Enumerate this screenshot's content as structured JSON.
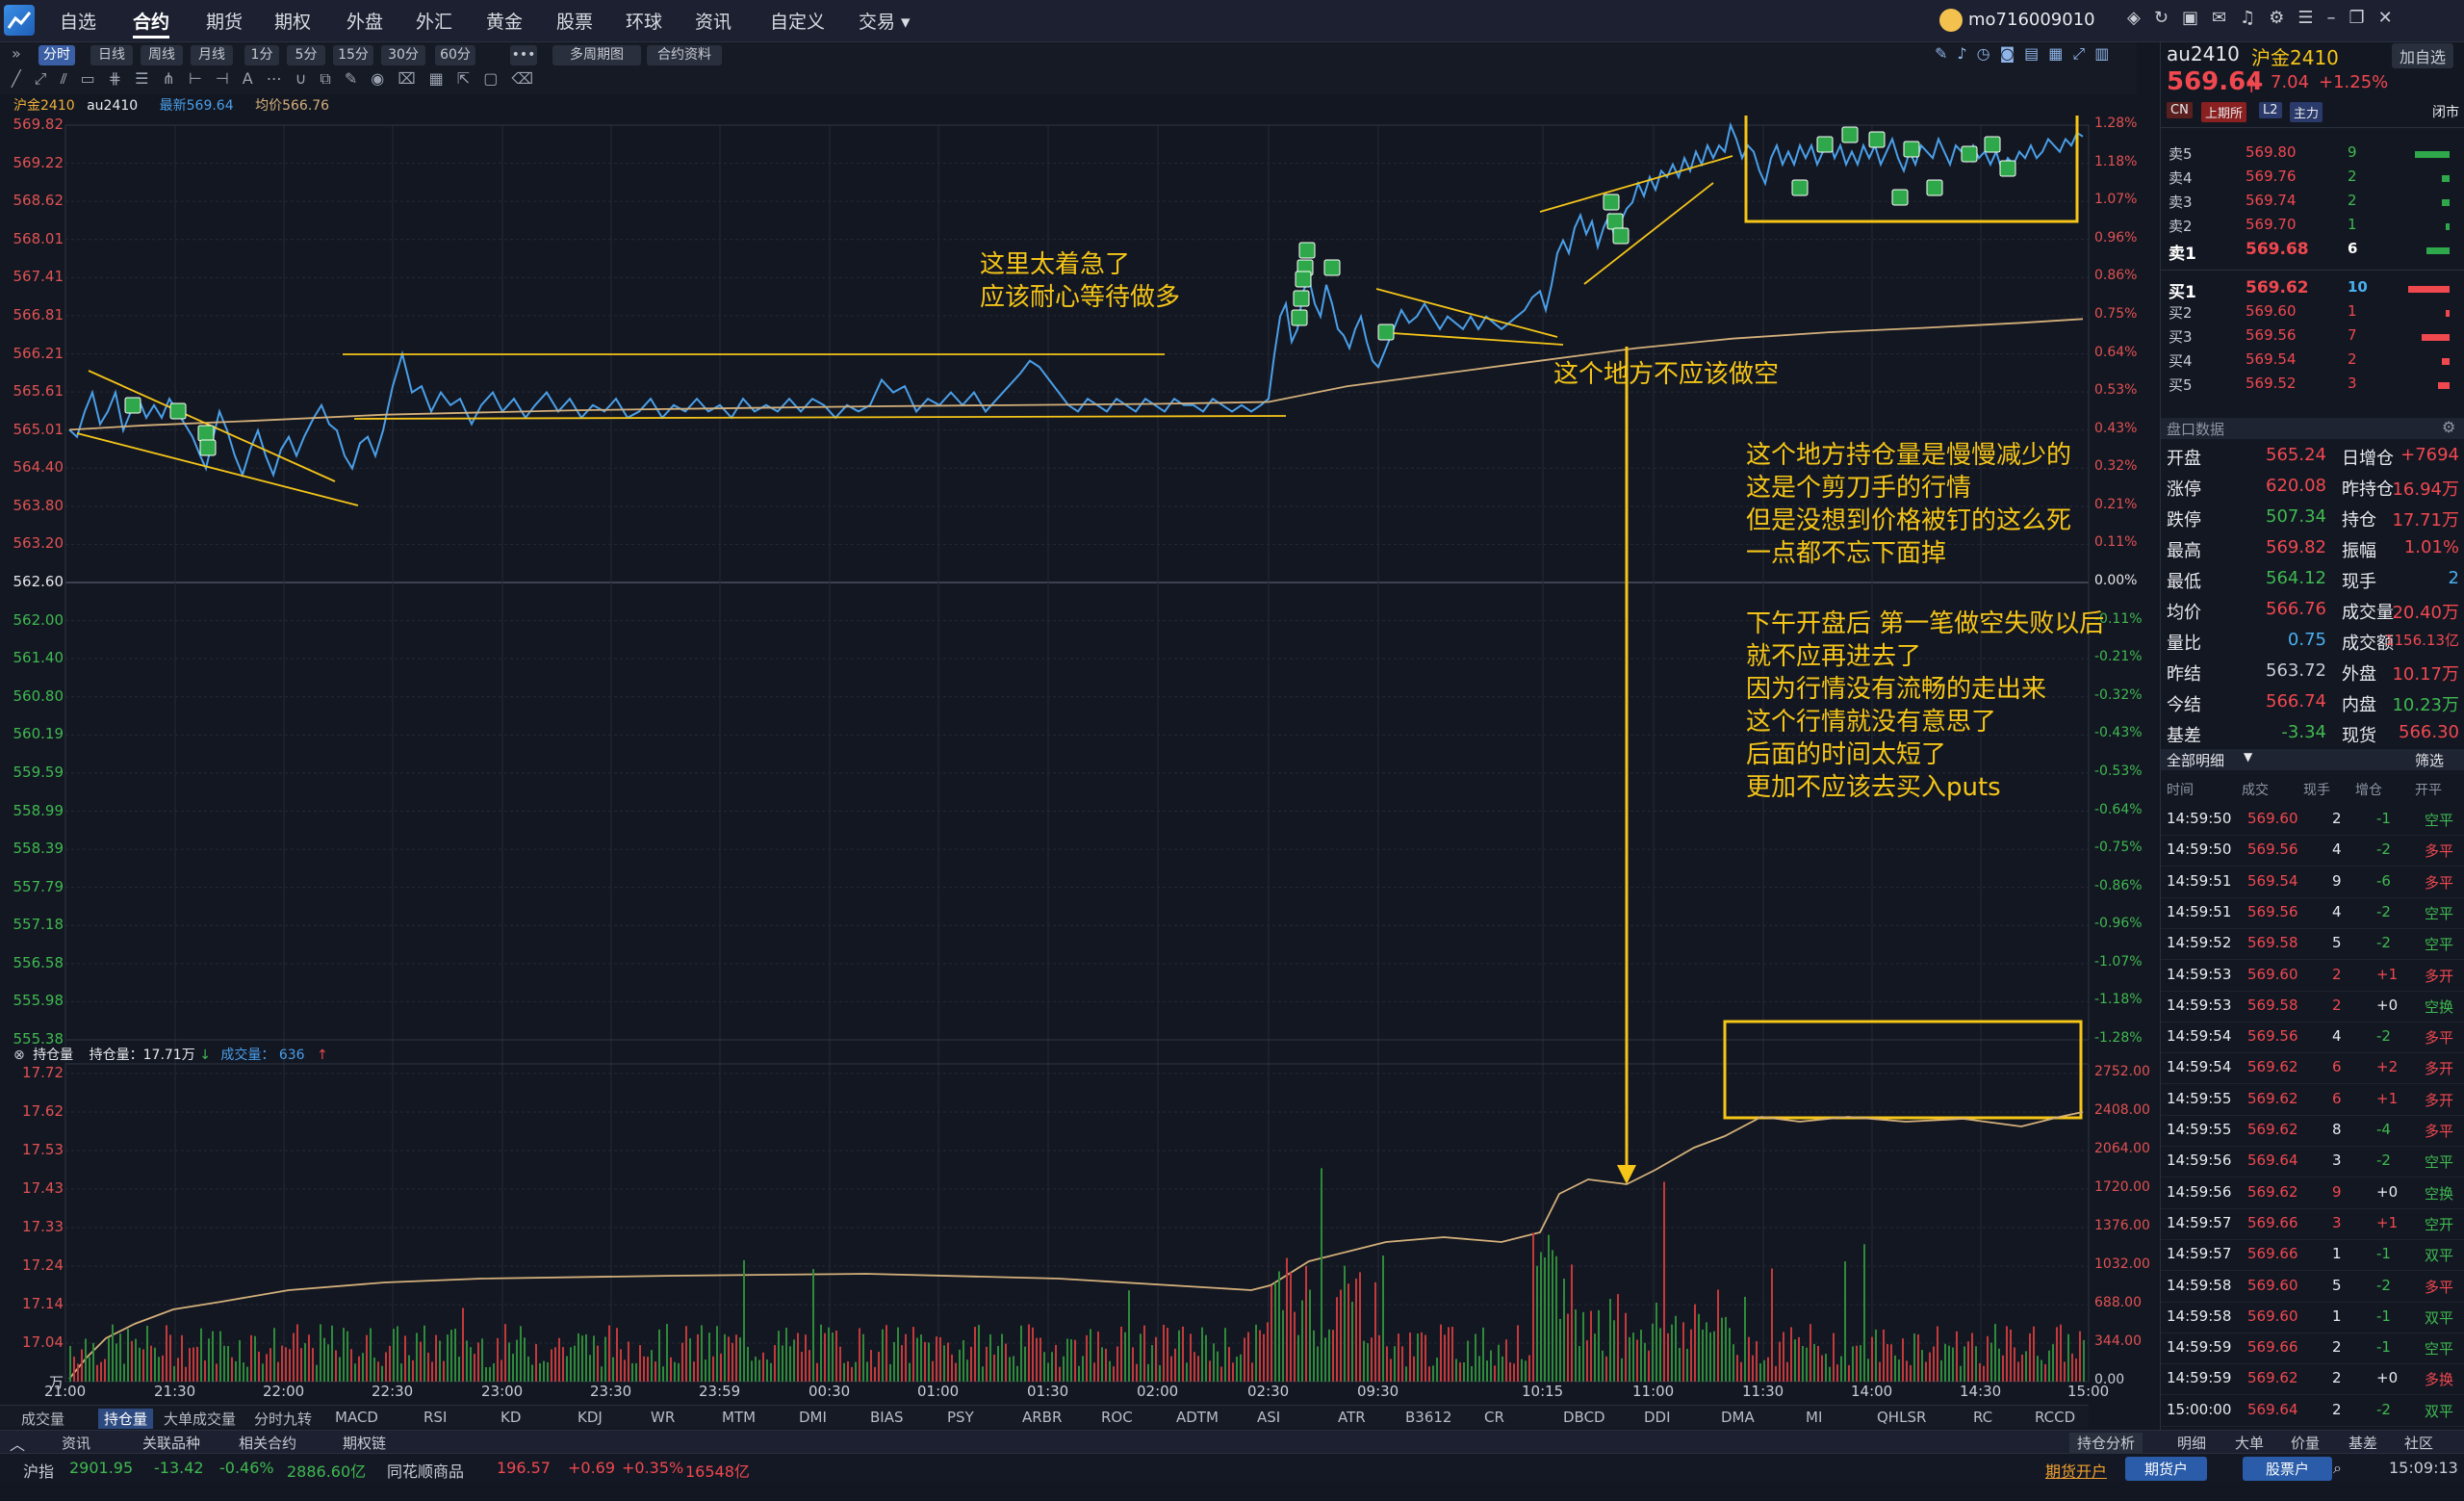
{
  "app": {
    "menu": [
      "自选",
      "合约",
      "期货",
      "期权",
      "外盘",
      "外汇",
      "黄金",
      "股票",
      "环球",
      "资讯",
      "自定义",
      "交易"
    ],
    "active_menu": "合约",
    "user": "mo716009010"
  },
  "timeframes": [
    "分时",
    "日线",
    "周线",
    "月线",
    "1分",
    "5分",
    "15分",
    "30分",
    "60分"
  ],
  "active_timeframe": "分时",
  "toolbar": {
    "more": "•••",
    "multi_day": "多周期图",
    "contract_info": "合约资料"
  },
  "legend": {
    "name": "沪金2410",
    "code": "au2410",
    "latest_label": "最新569.64",
    "avg_label": "均价566.76"
  },
  "price_axis": [
    "569.82",
    "569.22",
    "568.62",
    "568.01",
    "567.41",
    "566.81",
    "566.21",
    "565.61",
    "565.01",
    "564.40",
    "563.80",
    "563.20",
    "562.60",
    "562.00",
    "561.40",
    "560.80",
    "560.19",
    "559.59",
    "558.99",
    "558.39",
    "557.79",
    "557.18",
    "556.58",
    "555.98",
    "555.38"
  ],
  "pct_axis": [
    "1.28%",
    "1.18%",
    "1.07%",
    "0.96%",
    "0.86%",
    "0.75%",
    "0.64%",
    "0.53%",
    "0.43%",
    "0.32%",
    "0.21%",
    "0.11%",
    "0.00%",
    "-0.11%",
    "-0.21%",
    "-0.32%",
    "-0.43%",
    "-0.53%",
    "-0.64%",
    "-0.75%",
    "-0.86%",
    "-0.96%",
    "-1.07%",
    "-1.18%",
    "-1.28%"
  ],
  "annotations": {
    "a1": [
      "这里太着急了",
      "应该耐心等待做多"
    ],
    "a2": [
      "这个地方不应该做空"
    ],
    "a3": [
      "这个地方持仓量是慢慢减少的",
      "这是个剪刀手的行情",
      "但是没想到价格被钉的这么死",
      "一点都不忘下面掉"
    ],
    "a4": [
      "下午开盘后 第一笔做空失败以后",
      "就不应再进去了",
      "因为行情没有流畅的走出来",
      "这个行情就没有意思了",
      "后面的时间太短了",
      "更加不应该去买入puts"
    ]
  },
  "sub_legend": {
    "oi_label": "持仓量",
    "oi_value": "持仓量：17.71万",
    "vol_label": "成交量：",
    "vol_value": "636"
  },
  "oi_axis": [
    "17.72",
    "17.62",
    "17.53",
    "17.43",
    "17.33",
    "17.24",
    "17.14",
    "17.04",
    "万"
  ],
  "vol_axis": [
    "2752.00",
    "2408.00",
    "2064.00",
    "1720.00",
    "1376.00",
    "1032.00",
    "688.00",
    "344.00",
    "0.00"
  ],
  "time_axis": [
    "21:00",
    "21:30",
    "22:00",
    "22:30",
    "23:00",
    "23:30",
    "23:59",
    "00:30",
    "01:00",
    "01:30",
    "02:00",
    "02:30",
    "09:30",
    "10:15",
    "11:00",
    "11:30",
    "14:00",
    "14:30",
    "15:00"
  ],
  "indicators": [
    "成交量",
    "持仓量",
    "大单成交量",
    "分时九转",
    "MACD",
    "RSI",
    "KD",
    "KDJ",
    "WR",
    "MTM",
    "DMI",
    "BIAS",
    "PSY",
    "ARBR",
    "ROC",
    "ADTM",
    "ASI",
    "ATR",
    "B3612",
    "CR",
    "DBCD",
    "DDI",
    "DMA",
    "MI",
    "QHLSR",
    "RC",
    "RCCD"
  ],
  "active_indicator": "持仓量",
  "bottom_tabs": [
    "资讯",
    "关联品种",
    "相关合约",
    "期权链"
  ],
  "oi_analysis": "持仓分析",
  "right_tabs": [
    "明细",
    "大单",
    "价量",
    "基差",
    "社区"
  ],
  "ticker": {
    "shz_name": "沪指",
    "shz_val": "2901.95",
    "shz_chg": "-13.42",
    "shz_pct": "-0.46%",
    "shz_amt": "2886.60亿",
    "ths_name": "同花顺商品",
    "ths_val": "196.57",
    "ths_chg": "+0.69",
    "ths_pct": "+0.35%",
    "ths_amt": "16548亿",
    "open_fut": "期货开户",
    "fut_btn": "期货户",
    "stock_btn": "股票户",
    "clock": "15:09:13"
  },
  "quote": {
    "code": "au2410",
    "name": "沪金2410",
    "add_fav": "加自选",
    "price": "569.64",
    "change": "7.04",
    "pct": "+1.25%",
    "tags": [
      "CN",
      "上期所",
      "L2",
      "主力"
    ],
    "status": "闭市"
  },
  "orderbook": {
    "asks": [
      {
        "l": "卖5",
        "p": "569.80",
        "q": "9",
        "w": 0.8
      },
      {
        "l": "卖4",
        "p": "569.76",
        "q": "2",
        "w": 0.18
      },
      {
        "l": "卖3",
        "p": "569.74",
        "q": "2",
        "w": 0.18
      },
      {
        "l": "卖2",
        "p": "569.70",
        "q": "1",
        "w": 0.09
      },
      {
        "l": "卖1",
        "p": "569.68",
        "q": "6",
        "w": 0.53
      }
    ],
    "bids": [
      {
        "l": "买1",
        "p": "569.62",
        "q": "10",
        "w": 0.95
      },
      {
        "l": "买2",
        "p": "569.60",
        "q": "1",
        "w": 0.09
      },
      {
        "l": "买3",
        "p": "569.56",
        "q": "7",
        "w": 0.64
      },
      {
        "l": "买4",
        "p": "569.54",
        "q": "2",
        "w": 0.18
      },
      {
        "l": "买5",
        "p": "569.52",
        "q": "3",
        "w": 0.27
      }
    ]
  },
  "panel_title": "盘口数据",
  "stats": [
    [
      "开盘",
      "565.24",
      "日增仓",
      "+7694"
    ],
    [
      "涨停",
      "620.08",
      "昨持仓",
      "16.94万"
    ],
    [
      "跌停",
      "507.34",
      "持仓",
      "17.71万"
    ],
    [
      "最高",
      "569.82",
      "振幅",
      "1.01%"
    ],
    [
      "最低",
      "564.12",
      "现手",
      "2"
    ],
    [
      "均价",
      "566.76",
      "成交量",
      "20.40万"
    ],
    [
      "量比",
      "0.75",
      "成交额",
      "1156.13亿"
    ],
    [
      "昨结",
      "563.72",
      "外盘",
      "10.17万"
    ],
    [
      "今结",
      "566.74",
      "内盘",
      "10.23万"
    ],
    [
      "基差",
      "-3.34",
      "现货",
      "566.30"
    ]
  ],
  "detail_title": "全部明细",
  "filter": "筛选",
  "trade_headers": [
    "时间",
    "成交",
    "现手",
    "增仓",
    "开平"
  ],
  "trades": [
    [
      "14:59:50",
      "569.60",
      "2",
      "-1",
      "空平"
    ],
    [
      "14:59:50",
      "569.56",
      "4",
      "-2",
      "多平"
    ],
    [
      "14:59:51",
      "569.54",
      "9",
      "-6",
      "多平"
    ],
    [
      "14:59:51",
      "569.56",
      "4",
      "-2",
      "空平"
    ],
    [
      "14:59:52",
      "569.58",
      "5",
      "-2",
      "空平"
    ],
    [
      "14:59:53",
      "569.60",
      "2",
      "+1",
      "多开"
    ],
    [
      "14:59:53",
      "569.58",
      "2",
      "+0",
      "空换"
    ],
    [
      "14:59:54",
      "569.56",
      "4",
      "-2",
      "多平"
    ],
    [
      "14:59:54",
      "569.62",
      "6",
      "+2",
      "多开"
    ],
    [
      "14:59:55",
      "569.62",
      "6",
      "+1",
      "多开"
    ],
    [
      "14:59:55",
      "569.62",
      "8",
      "-4",
      "多平"
    ],
    [
      "14:59:56",
      "569.64",
      "3",
      "-2",
      "空平"
    ],
    [
      "14:59:56",
      "569.62",
      "9",
      "+0",
      "空换"
    ],
    [
      "14:59:57",
      "569.66",
      "3",
      "+1",
      "空开"
    ],
    [
      "14:59:57",
      "569.66",
      "1",
      "-1",
      "双平"
    ],
    [
      "14:59:58",
      "569.60",
      "5",
      "-2",
      "多平"
    ],
    [
      "14:59:58",
      "569.60",
      "1",
      "-1",
      "双平"
    ],
    [
      "14:59:59",
      "569.66",
      "2",
      "-1",
      "空平"
    ],
    [
      "14:59:59",
      "569.62",
      "2",
      "+0",
      "多换"
    ],
    [
      "15:00:00",
      "569.64",
      "2",
      "-2",
      "双平"
    ]
  ],
  "colors": {
    "up": "#f0484f",
    "down": "#3fb950",
    "price_line": "#4a9fe8",
    "avg_line": "#d4b07a",
    "anno": "#f5c518"
  }
}
